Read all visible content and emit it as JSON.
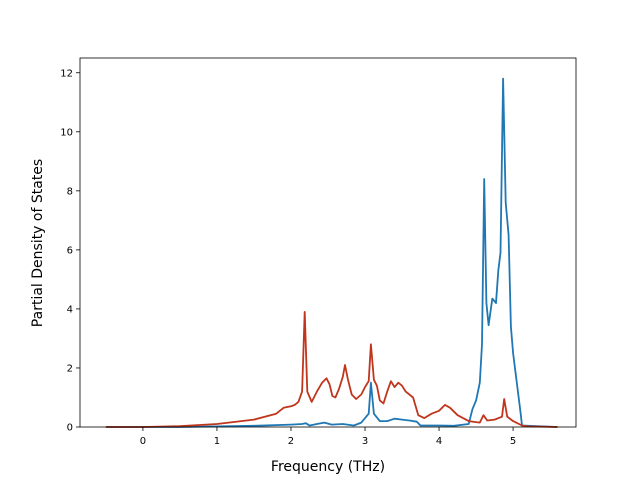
{
  "chart_data": {
    "type": "line",
    "title": "",
    "xlabel": "Frequency (THz)",
    "ylabel": "Partial Density of States",
    "xlim": [
      -0.85,
      5.85
    ],
    "ylim": [
      0,
      12.5
    ],
    "xticks": [
      0,
      1,
      2,
      3,
      4,
      5
    ],
    "yticks": [
      0,
      2,
      4,
      6,
      8,
      10,
      12
    ],
    "grid": false,
    "legend": "none",
    "series": [
      {
        "color": "#1f77b4",
        "points": [
          [
            -0.5,
            0
          ],
          [
            0.5,
            0
          ],
          [
            1.0,
            0.02
          ],
          [
            1.5,
            0.04
          ],
          [
            2.0,
            0.08
          ],
          [
            2.15,
            0.1
          ],
          [
            2.2,
            0.13
          ],
          [
            2.25,
            0.05
          ],
          [
            2.35,
            0.1
          ],
          [
            2.45,
            0.15
          ],
          [
            2.55,
            0.08
          ],
          [
            2.7,
            0.1
          ],
          [
            2.85,
            0.05
          ],
          [
            2.95,
            0.15
          ],
          [
            3.05,
            0.45
          ],
          [
            3.08,
            1.5
          ],
          [
            3.12,
            0.45
          ],
          [
            3.2,
            0.2
          ],
          [
            3.3,
            0.2
          ],
          [
            3.4,
            0.28
          ],
          [
            3.5,
            0.25
          ],
          [
            3.6,
            0.22
          ],
          [
            3.7,
            0.18
          ],
          [
            3.75,
            0.05
          ],
          [
            3.85,
            0.05
          ],
          [
            4.0,
            0.05
          ],
          [
            4.2,
            0.04
          ],
          [
            4.4,
            0.1
          ],
          [
            4.45,
            0.6
          ],
          [
            4.5,
            0.9
          ],
          [
            4.55,
            1.5
          ],
          [
            4.58,
            2.8
          ],
          [
            4.61,
            8.4
          ],
          [
            4.64,
            4.2
          ],
          [
            4.67,
            3.45
          ],
          [
            4.72,
            4.35
          ],
          [
            4.77,
            4.2
          ],
          [
            4.8,
            5.3
          ],
          [
            4.83,
            5.9
          ],
          [
            4.865,
            11.8
          ],
          [
            4.9,
            7.6
          ],
          [
            4.94,
            6.5
          ],
          [
            4.97,
            3.4
          ],
          [
            5.0,
            2.5
          ],
          [
            5.05,
            1.5
          ],
          [
            5.1,
            0.5
          ],
          [
            5.12,
            0.05
          ],
          [
            5.6,
            0.0
          ]
        ]
      },
      {
        "color": "#c1351d",
        "points": [
          [
            -0.5,
            0
          ],
          [
            0.0,
            0.0
          ],
          [
            0.5,
            0.03
          ],
          [
            1.0,
            0.1
          ],
          [
            1.5,
            0.25
          ],
          [
            1.8,
            0.45
          ],
          [
            1.9,
            0.65
          ],
          [
            2.0,
            0.7
          ],
          [
            2.05,
            0.75
          ],
          [
            2.1,
            0.85
          ],
          [
            2.15,
            1.2
          ],
          [
            2.185,
            3.9
          ],
          [
            2.22,
            1.2
          ],
          [
            2.28,
            0.85
          ],
          [
            2.35,
            1.2
          ],
          [
            2.42,
            1.5
          ],
          [
            2.48,
            1.65
          ],
          [
            2.52,
            1.45
          ],
          [
            2.56,
            1.05
          ],
          [
            2.6,
            1.0
          ],
          [
            2.65,
            1.3
          ],
          [
            2.7,
            1.7
          ],
          [
            2.73,
            2.1
          ],
          [
            2.77,
            1.6
          ],
          [
            2.82,
            1.1
          ],
          [
            2.88,
            0.95
          ],
          [
            2.95,
            1.1
          ],
          [
            3.0,
            1.35
          ],
          [
            3.05,
            1.55
          ],
          [
            3.08,
            2.8
          ],
          [
            3.12,
            1.6
          ],
          [
            3.16,
            1.4
          ],
          [
            3.2,
            0.9
          ],
          [
            3.25,
            0.8
          ],
          [
            3.3,
            1.2
          ],
          [
            3.35,
            1.55
          ],
          [
            3.4,
            1.35
          ],
          [
            3.45,
            1.5
          ],
          [
            3.5,
            1.4
          ],
          [
            3.55,
            1.2
          ],
          [
            3.65,
            1.0
          ],
          [
            3.72,
            0.4
          ],
          [
            3.8,
            0.3
          ],
          [
            3.9,
            0.45
          ],
          [
            4.0,
            0.55
          ],
          [
            4.08,
            0.75
          ],
          [
            4.15,
            0.65
          ],
          [
            4.25,
            0.4
          ],
          [
            4.4,
            0.2
          ],
          [
            4.55,
            0.15
          ],
          [
            4.6,
            0.4
          ],
          [
            4.65,
            0.22
          ],
          [
            4.75,
            0.25
          ],
          [
            4.85,
            0.35
          ],
          [
            4.88,
            0.95
          ],
          [
            4.92,
            0.35
          ],
          [
            5.0,
            0.2
          ],
          [
            5.12,
            0.05
          ],
          [
            5.2,
            0.02
          ],
          [
            5.6,
            0.0
          ]
        ]
      }
    ]
  }
}
